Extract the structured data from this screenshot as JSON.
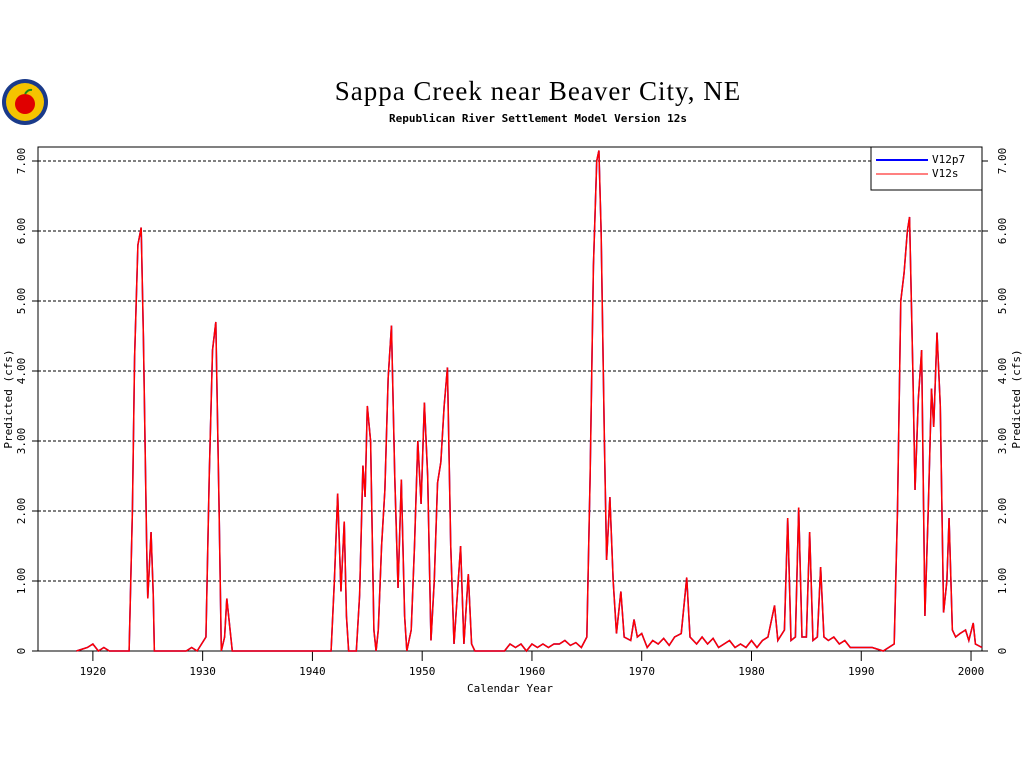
{
  "chart_data": {
    "type": "line",
    "title": "Sappa Creek near Beaver City, NE",
    "subtitle": "Republican River Settlement Model Version 12s",
    "xlabel": "Calendar Year",
    "ylabel": "Predicted (cfs)",
    "y2label": "Predicted (cfs)",
    "xlim": [
      1915,
      2001
    ],
    "xticks": [
      1920,
      1930,
      1940,
      1950,
      1960,
      1970,
      1980,
      1990,
      2000
    ],
    "ylim": [
      0,
      7.2
    ],
    "yticks": [
      0,
      {
        "value": 1,
        "label": "1.00"
      },
      {
        "value": 2,
        "label": "2.00"
      },
      {
        "value": 3,
        "label": "3.00"
      },
      {
        "value": 4,
        "label": "4.00"
      },
      {
        "value": 5,
        "label": "5.00"
      },
      {
        "value": 6,
        "label": "6.00"
      },
      {
        "value": 7,
        "label": "7.00"
      }
    ],
    "grid": true,
    "legend": "upper right",
    "x": [
      1918.5,
      1919.5,
      1920,
      1920.5,
      1921,
      1921.5,
      1923.3,
      1923.6,
      1923.8,
      1924.1,
      1924.4,
      1924.6,
      1924.9,
      1925,
      1925.3,
      1925.5,
      1925.6,
      1928.5,
      1929,
      1929.5,
      1930.3,
      1930.6,
      1930.9,
      1931.2,
      1931.5,
      1931.7,
      1932,
      1932.2,
      1932.5,
      1932.7,
      1941.7,
      1942,
      1942.3,
      1942.6,
      1942.9,
      1943.1,
      1943.3,
      1944,
      1944.3,
      1944.6,
      1944.8,
      1945,
      1945.3,
      1945.6,
      1945.8,
      1946,
      1946.3,
      1946.6,
      1946.9,
      1947.2,
      1947.5,
      1947.8,
      1948.1,
      1948.4,
      1948.6,
      1949,
      1949.3,
      1949.6,
      1949.9,
      1950.2,
      1950.5,
      1950.8,
      1951.1,
      1951.4,
      1951.7,
      1952,
      1952.3,
      1952.6,
      1952.9,
      1953.2,
      1953.5,
      1953.8,
      1954.2,
      1954.5,
      1954.8,
      1957.5,
      1958,
      1958.5,
      1959,
      1959.5,
      1960,
      1960.5,
      1961,
      1961.5,
      1962,
      1962.5,
      1963,
      1963.5,
      1964,
      1964.5,
      1965,
      1965.3,
      1965.6,
      1965.9,
      1966.1,
      1966.3,
      1966.6,
      1966.8,
      1967.1,
      1967.4,
      1967.7,
      1968.1,
      1968.4,
      1969,
      1969.3,
      1969.6,
      1970,
      1970.5,
      1971,
      1971.5,
      1972,
      1972.5,
      1973,
      1973.6,
      1974.1,
      1974.4,
      1975,
      1975.5,
      1976,
      1976.5,
      1977,
      1977.5,
      1978,
      1978.5,
      1979,
      1979.5,
      1980,
      1980.5,
      1981,
      1981.5,
      1982.1,
      1982.4,
      1983,
      1983.3,
      1983.6,
      1984,
      1984.3,
      1984.6,
      1985,
      1985.3,
      1985.6,
      1986,
      1986.3,
      1986.6,
      1987,
      1987.5,
      1988,
      1988.5,
      1989,
      1990,
      1991,
      1992,
      1992.5,
      1993,
      1993.3,
      1993.6,
      1993.9,
      1994.2,
      1994.4,
      1994.7,
      1994.9,
      1995.2,
      1995.5,
      1995.8,
      1996.1,
      1996.4,
      1996.6,
      1996.9,
      1997.2,
      1997.5,
      1997.8,
      1998,
      1998.3,
      1998.6,
      1999,
      1999.5,
      1999.8,
      2000.2,
      2000.4,
      2001
    ],
    "series": [
      {
        "name": "V12p7",
        "color": "#0000ff",
        "values": [
          0,
          0.05,
          0.1,
          0,
          0.05,
          0,
          0,
          2.0,
          4.2,
          5.8,
          6.05,
          4.5,
          1.5,
          0.75,
          1.7,
          0.8,
          0,
          0,
          0.05,
          0,
          0.2,
          2.5,
          4.3,
          4.7,
          2.0,
          0,
          0.2,
          0.75,
          0.3,
          0,
          0,
          1.0,
          2.25,
          0.85,
          1.85,
          0.5,
          0,
          0,
          0.8,
          2.65,
          2.2,
          3.5,
          3.0,
          0.3,
          0,
          0.3,
          1.5,
          2.3,
          3.9,
          4.65,
          2.5,
          0.9,
          2.45,
          0.5,
          0,
          0.3,
          1.5,
          3.0,
          2.1,
          3.55,
          2.5,
          0.15,
          1.0,
          2.4,
          2.7,
          3.5,
          4.05,
          1.5,
          0.1,
          0.8,
          1.5,
          0.1,
          1.1,
          0.1,
          0,
          0,
          0.1,
          0.05,
          0.1,
          0,
          0.1,
          0.05,
          0.1,
          0.05,
          0.1,
          0.1,
          0.15,
          0.08,
          0.12,
          0.05,
          0.2,
          2.5,
          5.5,
          7.0,
          7.15,
          6.0,
          3.0,
          1.3,
          2.2,
          1.0,
          0.25,
          0.85,
          0.2,
          0.15,
          0.45,
          0.2,
          0.25,
          0.05,
          0.15,
          0.1,
          0.18,
          0.08,
          0.2,
          0.25,
          1.05,
          0.2,
          0.1,
          0.2,
          0.1,
          0.18,
          0.05,
          0.1,
          0.15,
          0.05,
          0.1,
          0.05,
          0.15,
          0.05,
          0.15,
          0.2,
          0.65,
          0.15,
          0.3,
          1.9,
          0.15,
          0.2,
          2.05,
          0.2,
          0.2,
          1.7,
          0.15,
          0.2,
          1.2,
          0.2,
          0.15,
          0.2,
          0.1,
          0.15,
          0.05,
          0.05,
          0.05,
          0,
          0.05,
          0.1,
          2.0,
          5.0,
          5.4,
          6.0,
          6.2,
          4.0,
          2.3,
          3.6,
          4.3,
          0.5,
          2.0,
          3.75,
          3.2,
          4.55,
          3.5,
          0.55,
          1.0,
          1.9,
          0.3,
          0.2,
          0.25,
          0.3,
          0.15,
          0.4,
          0.1,
          0.05
        ]
      },
      {
        "name": "V12s",
        "color": "#ff0000",
        "values": [
          0,
          0.05,
          0.1,
          0,
          0.05,
          0,
          0,
          2.0,
          4.2,
          5.8,
          6.05,
          4.5,
          1.5,
          0.75,
          1.7,
          0.8,
          0,
          0,
          0.05,
          0,
          0.2,
          2.5,
          4.3,
          4.7,
          2.0,
          0,
          0.2,
          0.75,
          0.3,
          0,
          0,
          1.0,
          2.25,
          0.85,
          1.85,
          0.5,
          0,
          0,
          0.8,
          2.65,
          2.2,
          3.5,
          3.0,
          0.3,
          0,
          0.3,
          1.5,
          2.3,
          3.9,
          4.65,
          2.5,
          0.9,
          2.45,
          0.5,
          0,
          0.3,
          1.5,
          3.0,
          2.1,
          3.55,
          2.5,
          0.15,
          1.0,
          2.4,
          2.7,
          3.5,
          4.05,
          1.5,
          0.1,
          0.8,
          1.5,
          0.1,
          1.1,
          0.1,
          0,
          0,
          0.1,
          0.05,
          0.1,
          0,
          0.1,
          0.05,
          0.1,
          0.05,
          0.1,
          0.1,
          0.15,
          0.08,
          0.12,
          0.05,
          0.2,
          2.5,
          5.5,
          7.0,
          7.15,
          6.0,
          3.0,
          1.3,
          2.2,
          1.0,
          0.25,
          0.85,
          0.2,
          0.15,
          0.45,
          0.2,
          0.25,
          0.05,
          0.15,
          0.1,
          0.18,
          0.08,
          0.2,
          0.25,
          1.05,
          0.2,
          0.1,
          0.2,
          0.1,
          0.18,
          0.05,
          0.1,
          0.15,
          0.05,
          0.1,
          0.05,
          0.15,
          0.05,
          0.15,
          0.2,
          0.65,
          0.15,
          0.3,
          1.9,
          0.15,
          0.2,
          2.05,
          0.2,
          0.2,
          1.7,
          0.15,
          0.2,
          1.2,
          0.2,
          0.15,
          0.2,
          0.1,
          0.15,
          0.05,
          0.05,
          0.05,
          0,
          0.05,
          0.1,
          2.0,
          5.0,
          5.4,
          6.0,
          6.2,
          4.0,
          2.3,
          3.6,
          4.3,
          0.5,
          2.0,
          3.75,
          3.2,
          4.55,
          3.5,
          0.55,
          1.0,
          1.9,
          0.3,
          0.2,
          0.25,
          0.3,
          0.15,
          0.4,
          0.1,
          0.05
        ]
      }
    ]
  }
}
